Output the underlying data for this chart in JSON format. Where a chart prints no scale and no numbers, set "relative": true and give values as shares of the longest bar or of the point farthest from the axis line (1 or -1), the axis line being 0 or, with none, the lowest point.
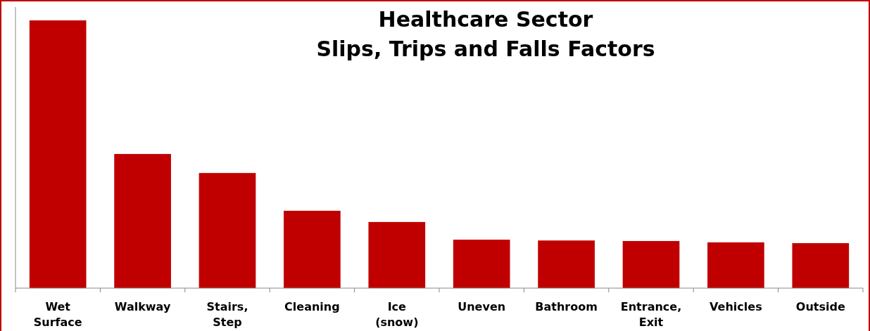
{
  "chart_data": {
    "type": "bar",
    "title": "Healthcare Sector\nSlips, Trips and Falls Factors",
    "relative": true,
    "categories": [
      "Wet Surface",
      "Walkway",
      "Stairs, Step",
      "Cleaning",
      "Ice (snow)",
      "Uneven",
      "Bathroom",
      "Entrance, Exit",
      "Vehicles",
      "Outside"
    ],
    "values": [
      1,
      0.501,
      0.43,
      0.289,
      0.247,
      0.181,
      0.178,
      0.176,
      0.171,
      0.168
    ],
    "color": "#c00000"
  }
}
